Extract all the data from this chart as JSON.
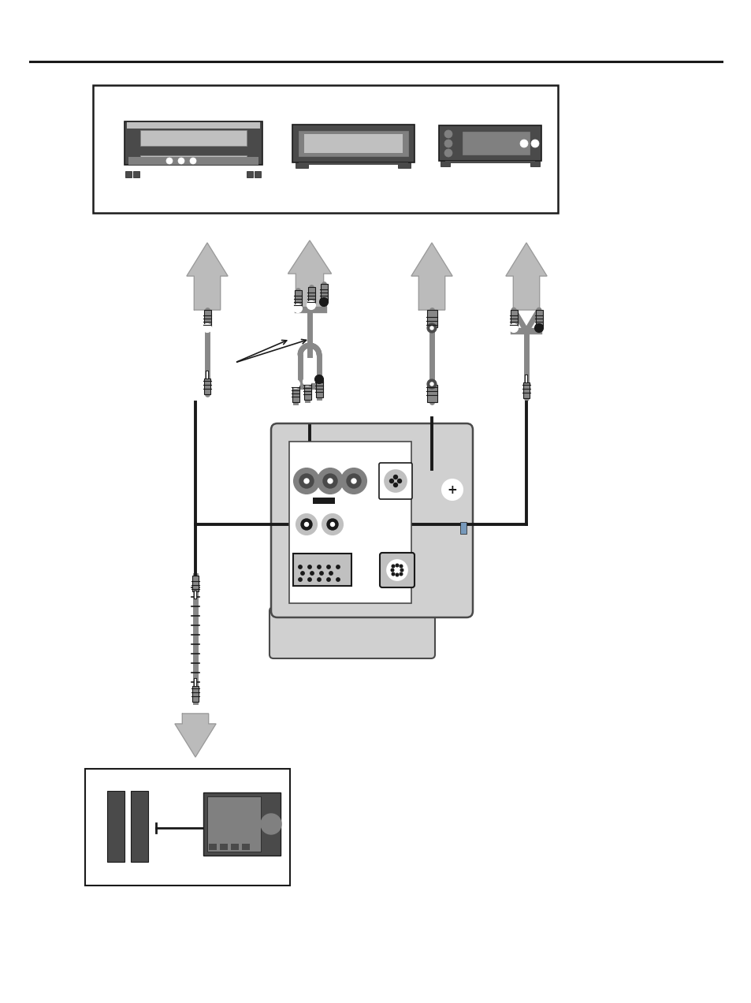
{
  "bg_color": "#ffffff",
  "line_color": "#1a1a1a",
  "dark_gray": "#4a4a4a",
  "med_gray": "#808080",
  "light_gray": "#c0c0c0",
  "box_gray": "#999999",
  "projector_body": "#d0d0d0",
  "projector_panel": "#e8e8e8",
  "cable_gray": "#888888",
  "arrow_gray": "#bbbbbb",
  "arrow_outline": "#999999"
}
